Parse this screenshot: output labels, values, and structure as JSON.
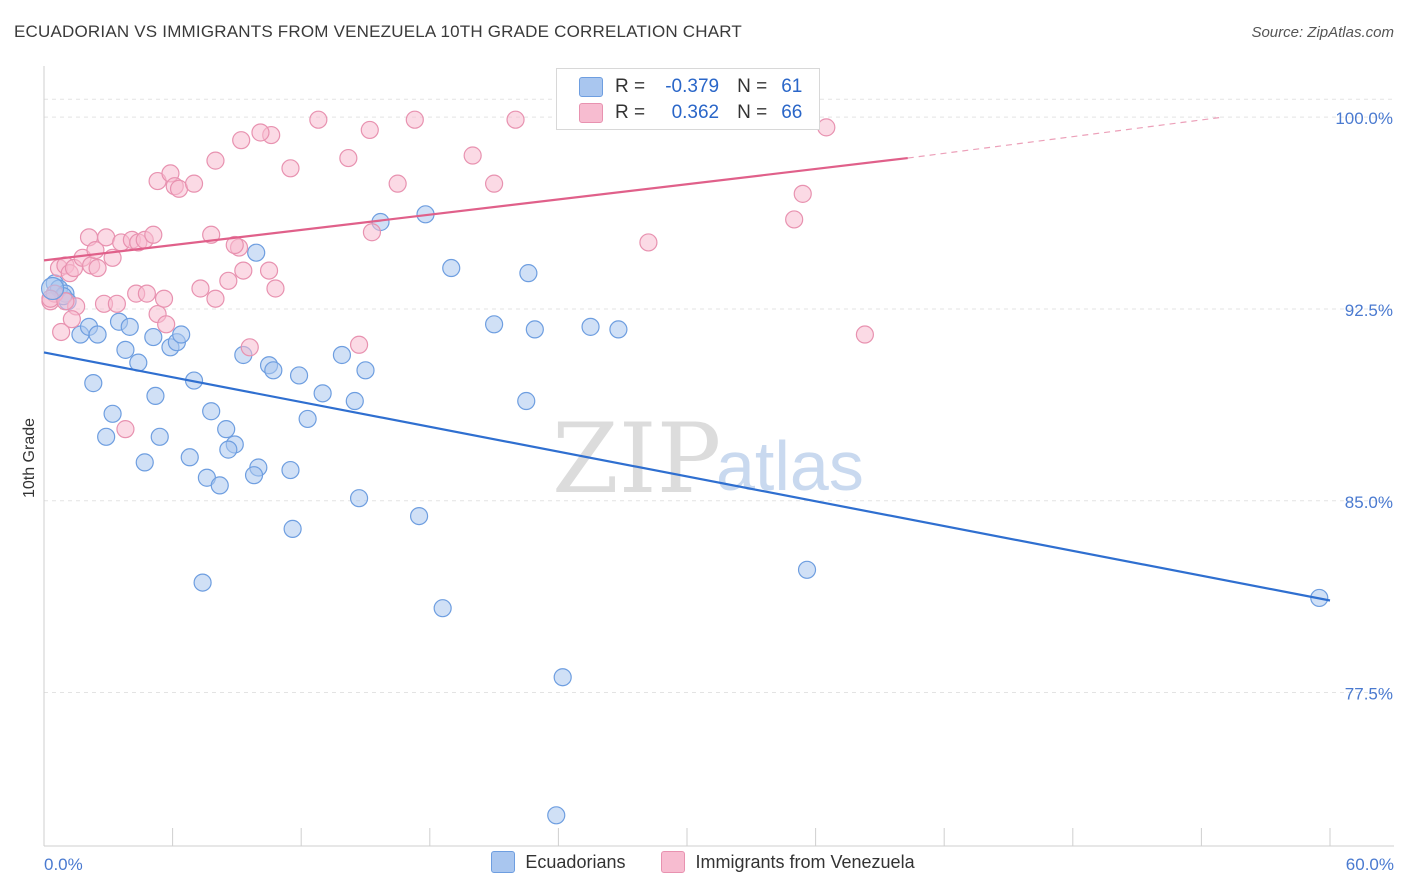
{
  "title": "ECUADORIAN VS IMMIGRANTS FROM VENEZUELA 10TH GRADE CORRELATION CHART",
  "source": "Source: ZipAtlas.com",
  "watermark": {
    "zip": "ZIP",
    "atlas": "atlas"
  },
  "legend": {
    "r_key": "R =",
    "n_key": "N =",
    "rows": [
      {
        "r": "-0.379",
        "n": "61",
        "color": "#a9c6ef",
        "border": "#6e9ee0"
      },
      {
        "r": "0.362",
        "n": "66",
        "color": "#f7bcd0",
        "border": "#e892b0"
      }
    ]
  },
  "chart_data": {
    "type": "scatter",
    "ylabel": "10th Grade",
    "xlim": [
      0,
      60
    ],
    "ylim": [
      71.5,
      102
    ],
    "x_ticks": [
      "0.0%",
      "60.0%"
    ],
    "y_ticks": [
      {
        "value": 100.0,
        "label": "100.0%"
      },
      {
        "value": 92.5,
        "label": "92.5%"
      },
      {
        "value": 85.0,
        "label": "85.0%"
      },
      {
        "value": 77.5,
        "label": "77.5%"
      }
    ],
    "grid": true,
    "series": [
      {
        "name": "Ecuadorians",
        "color": "#6e9ee0",
        "fill": "#a9c6ef",
        "line_color": "#2f6fd0",
        "trend": [
          [
            0,
            90.8
          ],
          [
            60,
            81.1
          ]
        ],
        "trend_dashed": null,
        "points": [
          [
            0.5,
            93.5
          ],
          [
            0.7,
            93.3
          ],
          [
            1.0,
            93.1
          ],
          [
            1.1,
            92.8
          ],
          [
            0.9,
            93.0
          ],
          [
            1.7,
            91.5
          ],
          [
            2.1,
            91.8
          ],
          [
            2.5,
            91.5
          ],
          [
            3.5,
            92.0
          ],
          [
            4.0,
            91.8
          ],
          [
            3.8,
            90.9
          ],
          [
            4.4,
            90.4
          ],
          [
            5.1,
            91.4
          ],
          [
            5.9,
            91.0
          ],
          [
            6.2,
            91.2
          ],
          [
            6.4,
            91.5
          ],
          [
            2.3,
            89.6
          ],
          [
            3.2,
            88.4
          ],
          [
            5.2,
            89.1
          ],
          [
            7.0,
            89.7
          ],
          [
            2.9,
            87.5
          ],
          [
            5.4,
            87.5
          ],
          [
            7.8,
            88.5
          ],
          [
            8.5,
            87.8
          ],
          [
            4.7,
            86.5
          ],
          [
            6.8,
            86.7
          ],
          [
            8.9,
            87.2
          ],
          [
            8.6,
            87.0
          ],
          [
            7.6,
            85.9
          ],
          [
            8.2,
            85.6
          ],
          [
            10.0,
            86.3
          ],
          [
            9.8,
            86.0
          ],
          [
            11.5,
            86.2
          ],
          [
            9.3,
            90.7
          ],
          [
            10.5,
            90.3
          ],
          [
            10.7,
            90.1
          ],
          [
            11.9,
            89.9
          ],
          [
            13.0,
            89.2
          ],
          [
            12.3,
            88.2
          ],
          [
            14.5,
            88.9
          ],
          [
            13.9,
            90.7
          ],
          [
            15.0,
            90.1
          ],
          [
            9.9,
            94.7
          ],
          [
            15.7,
            95.9
          ],
          [
            17.8,
            96.2
          ],
          [
            19.0,
            94.1
          ],
          [
            22.6,
            93.9
          ],
          [
            21.0,
            91.9
          ],
          [
            22.9,
            91.7
          ],
          [
            25.5,
            91.8
          ],
          [
            26.8,
            91.7
          ],
          [
            22.5,
            88.9
          ],
          [
            14.7,
            85.1
          ],
          [
            17.5,
            84.4
          ],
          [
            11.6,
            83.9
          ],
          [
            7.4,
            81.8
          ],
          [
            18.6,
            80.8
          ],
          [
            35.6,
            82.3
          ],
          [
            24.2,
            78.1
          ],
          [
            23.9,
            72.7
          ],
          [
            59.5,
            81.2
          ]
        ]
      },
      {
        "name": "Immigrants from Venezuela",
        "color": "#e892b0",
        "fill": "#f7bcd0",
        "line_color": "#e0608a",
        "trend": [
          [
            0,
            94.4
          ],
          [
            40.3,
            98.4
          ]
        ],
        "trend_dashed": [
          [
            40.3,
            98.4
          ],
          [
            55,
            100.0
          ]
        ],
        "points": [
          [
            0.3,
            92.8
          ],
          [
            0.5,
            93.1
          ],
          [
            0.7,
            94.1
          ],
          [
            1.0,
            94.2
          ],
          [
            1.2,
            93.9
          ],
          [
            1.4,
            94.1
          ],
          [
            1.8,
            94.5
          ],
          [
            2.2,
            94.2
          ],
          [
            2.5,
            94.1
          ],
          [
            3.2,
            94.5
          ],
          [
            2.1,
            95.3
          ],
          [
            2.4,
            94.8
          ],
          [
            2.9,
            95.3
          ],
          [
            3.6,
            95.1
          ],
          [
            4.1,
            95.2
          ],
          [
            4.4,
            95.1
          ],
          [
            4.7,
            95.2
          ],
          [
            5.1,
            95.4
          ],
          [
            0.8,
            91.6
          ],
          [
            1.5,
            92.6
          ],
          [
            1.3,
            92.1
          ],
          [
            2.8,
            92.7
          ],
          [
            3.4,
            92.7
          ],
          [
            4.3,
            93.1
          ],
          [
            4.8,
            93.1
          ],
          [
            5.3,
            92.3
          ],
          [
            5.7,
            91.9
          ],
          [
            5.6,
            92.9
          ],
          [
            7.3,
            93.3
          ],
          [
            8.0,
            92.9
          ],
          [
            8.6,
            93.6
          ],
          [
            9.1,
            94.9
          ],
          [
            9.3,
            94.0
          ],
          [
            8.9,
            95.0
          ],
          [
            7.8,
            95.4
          ],
          [
            10.5,
            94.0
          ],
          [
            10.8,
            93.3
          ],
          [
            5.3,
            97.5
          ],
          [
            5.9,
            97.8
          ],
          [
            6.1,
            97.3
          ],
          [
            6.3,
            97.2
          ],
          [
            7.0,
            97.4
          ],
          [
            8.0,
            98.3
          ],
          [
            9.2,
            99.1
          ],
          [
            10.6,
            99.3
          ],
          [
            10.1,
            99.4
          ],
          [
            11.5,
            98.0
          ],
          [
            12.8,
            99.9
          ],
          [
            14.2,
            98.4
          ],
          [
            15.2,
            99.5
          ],
          [
            16.5,
            97.4
          ],
          [
            17.3,
            99.9
          ],
          [
            20.0,
            98.5
          ],
          [
            21.0,
            97.4
          ],
          [
            22.0,
            99.9
          ],
          [
            15.3,
            95.5
          ],
          [
            28.2,
            95.1
          ],
          [
            35.4,
            97.0
          ],
          [
            35.0,
            96.0
          ],
          [
            36.5,
            99.6
          ],
          [
            38.3,
            91.5
          ],
          [
            9.6,
            91.0
          ],
          [
            14.7,
            91.1
          ],
          [
            3.8,
            87.8
          ],
          [
            0.3,
            92.9
          ],
          [
            1.0,
            92.8
          ]
        ]
      }
    ]
  }
}
